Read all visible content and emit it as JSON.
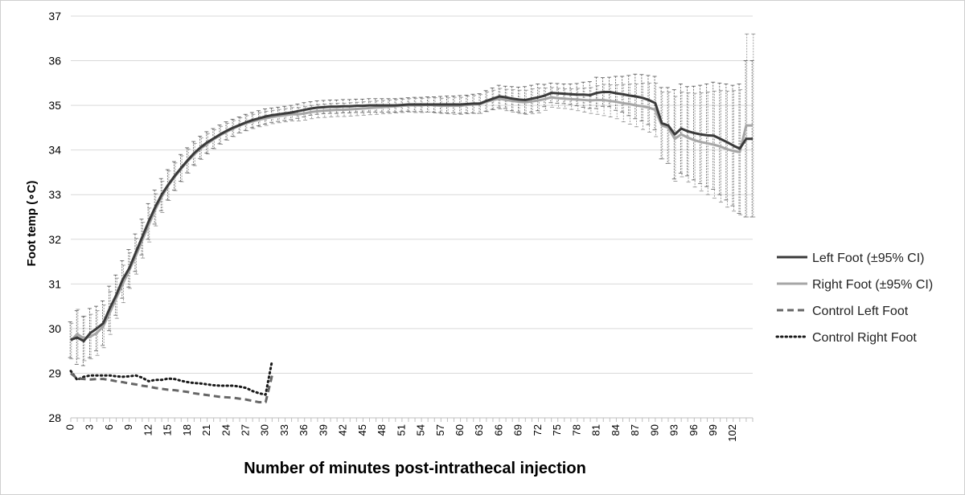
{
  "chart_data": {
    "type": "line",
    "title": "",
    "xlabel": "Number of minutes post-intrathecal injection",
    "ylabel": "Foot temp (∘C)",
    "ylim": [
      28,
      37
    ],
    "yticks": [
      28,
      29,
      30,
      31,
      32,
      33,
      34,
      35,
      36,
      37
    ],
    "xlim": [
      0,
      105
    ],
    "xtick_step": 3,
    "xticks_last": 102,
    "grid": true,
    "legend_position": "right",
    "error_bars": "95% CI",
    "series": [
      {
        "name": "Left Foot (±95% CI)",
        "style": "solid",
        "color": "#3a3a3a",
        "x": [
          0,
          1,
          2,
          3,
          4,
          5,
          6,
          7,
          8,
          9,
          10,
          11,
          12,
          13,
          14,
          15,
          16,
          17,
          18,
          19,
          20,
          21,
          22,
          23,
          24,
          25,
          26,
          27,
          28,
          29,
          30,
          31,
          32,
          33,
          34,
          35,
          36,
          37,
          38,
          39,
          40,
          41,
          42,
          43,
          44,
          45,
          46,
          47,
          48,
          49,
          50,
          51,
          52,
          53,
          54,
          55,
          56,
          57,
          58,
          59,
          60,
          61,
          62,
          63,
          64,
          65,
          66,
          67,
          68,
          69,
          70,
          71,
          72,
          73,
          74,
          75,
          76,
          77,
          78,
          79,
          80,
          81,
          82,
          83,
          84,
          85,
          86,
          87,
          88,
          89,
          90,
          91,
          92,
          93,
          94,
          95,
          96,
          97,
          98,
          99,
          100,
          101,
          102,
          103,
          104,
          105
        ],
        "values": [
          29.75,
          29.8,
          29.72,
          29.9,
          30.0,
          30.12,
          30.45,
          30.75,
          31.1,
          31.35,
          31.7,
          32.05,
          32.4,
          32.72,
          33.0,
          33.22,
          33.42,
          33.6,
          33.77,
          33.93,
          34.06,
          34.17,
          34.26,
          34.35,
          34.43,
          34.5,
          34.56,
          34.62,
          34.67,
          34.71,
          34.75,
          34.78,
          34.8,
          34.82,
          34.84,
          34.87,
          34.9,
          34.93,
          34.95,
          34.96,
          34.97,
          34.97,
          34.98,
          34.98,
          34.99,
          34.99,
          35.0,
          35.0,
          35.0,
          35.0,
          35.0,
          35.01,
          35.02,
          35.02,
          35.02,
          35.02,
          35.02,
          35.02,
          35.02,
          35.02,
          35.02,
          35.03,
          35.04,
          35.04,
          35.1,
          35.15,
          35.2,
          35.18,
          35.15,
          35.13,
          35.12,
          35.15,
          35.18,
          35.22,
          35.28,
          35.27,
          35.26,
          35.25,
          35.24,
          35.24,
          35.23,
          35.28,
          35.3,
          35.3,
          35.27,
          35.25,
          35.22,
          35.2,
          35.17,
          35.12,
          35.05,
          34.6,
          34.55,
          34.35,
          34.48,
          34.42,
          34.38,
          34.35,
          34.33,
          34.32,
          34.25,
          34.18,
          34.1,
          34.03,
          34.25,
          34.25
        ],
        "ci_half": [
          0.4,
          0.6,
          0.55,
          0.55,
          0.5,
          0.5,
          0.5,
          0.45,
          0.42,
          0.42,
          0.42,
          0.4,
          0.4,
          0.38,
          0.36,
          0.34,
          0.32,
          0.3,
          0.28,
          0.26,
          0.25,
          0.24,
          0.22,
          0.21,
          0.2,
          0.19,
          0.18,
          0.18,
          0.17,
          0.17,
          0.17,
          0.16,
          0.16,
          0.16,
          0.16,
          0.16,
          0.16,
          0.15,
          0.15,
          0.15,
          0.15,
          0.15,
          0.15,
          0.15,
          0.15,
          0.15,
          0.15,
          0.15,
          0.15,
          0.15,
          0.15,
          0.15,
          0.15,
          0.16,
          0.16,
          0.17,
          0.17,
          0.18,
          0.19,
          0.19,
          0.2,
          0.2,
          0.21,
          0.22,
          0.23,
          0.24,
          0.25,
          0.25,
          0.27,
          0.28,
          0.3,
          0.3,
          0.3,
          0.25,
          0.22,
          0.22,
          0.22,
          0.23,
          0.25,
          0.28,
          0.3,
          0.35,
          0.32,
          0.33,
          0.38,
          0.4,
          0.45,
          0.5,
          0.52,
          0.55,
          0.6,
          0.8,
          0.85,
          1.0,
          1.0,
          1.0,
          1.05,
          1.1,
          1.15,
          1.2,
          1.25,
          1.3,
          1.35,
          1.45,
          1.75,
          1.75
        ]
      },
      {
        "name": "Right Foot (±95% CI)",
        "style": "solid",
        "color": "#a6a6a6",
        "x": [
          0,
          1,
          2,
          3,
          4,
          5,
          6,
          7,
          8,
          9,
          10,
          11,
          12,
          13,
          14,
          15,
          16,
          17,
          18,
          19,
          20,
          21,
          22,
          23,
          24,
          25,
          26,
          27,
          28,
          29,
          30,
          31,
          32,
          33,
          34,
          35,
          36,
          37,
          38,
          39,
          40,
          41,
          42,
          43,
          44,
          45,
          46,
          47,
          48,
          49,
          50,
          51,
          52,
          53,
          54,
          55,
          56,
          57,
          58,
          59,
          60,
          61,
          62,
          63,
          64,
          65,
          66,
          67,
          68,
          69,
          70,
          71,
          72,
          73,
          74,
          75,
          76,
          77,
          78,
          79,
          80,
          81,
          82,
          83,
          84,
          85,
          86,
          87,
          88,
          89,
          90,
          91,
          92,
          93,
          94,
          95,
          96,
          97,
          98,
          99,
          100,
          101,
          102,
          103,
          104,
          105
        ],
        "values": [
          29.72,
          29.88,
          29.78,
          29.82,
          29.9,
          30.05,
          30.35,
          30.68,
          31.0,
          31.3,
          31.62,
          31.98,
          32.32,
          32.66,
          32.95,
          33.2,
          33.4,
          33.58,
          33.75,
          33.9,
          34.03,
          34.14,
          34.24,
          34.33,
          34.41,
          34.48,
          34.55,
          34.6,
          34.64,
          34.68,
          34.71,
          34.74,
          34.76,
          34.78,
          34.8,
          34.8,
          34.82,
          34.85,
          34.87,
          34.88,
          34.89,
          34.9,
          34.9,
          34.91,
          34.92,
          34.93,
          34.94,
          34.95,
          34.96,
          34.97,
          34.98,
          34.99,
          35.0,
          35.0,
          35.0,
          35.01,
          35.0,
          34.99,
          34.99,
          34.99,
          34.99,
          35.01,
          35.02,
          35.03,
          35.08,
          35.12,
          35.15,
          35.12,
          35.1,
          35.08,
          35.07,
          35.09,
          35.11,
          35.14,
          35.18,
          35.16,
          35.15,
          35.14,
          35.13,
          35.12,
          35.11,
          35.12,
          35.12,
          35.1,
          35.08,
          35.05,
          35.03,
          35.0,
          34.98,
          34.95,
          34.9,
          34.55,
          34.5,
          34.25,
          34.35,
          34.28,
          34.22,
          34.18,
          34.15,
          34.12,
          34.08,
          34.02,
          33.98,
          33.95,
          34.55,
          34.55
        ],
        "ci_half": [
          0.4,
          0.55,
          0.5,
          0.5,
          0.5,
          0.48,
          0.48,
          0.45,
          0.42,
          0.4,
          0.4,
          0.4,
          0.38,
          0.36,
          0.35,
          0.33,
          0.31,
          0.29,
          0.27,
          0.25,
          0.24,
          0.23,
          0.21,
          0.2,
          0.19,
          0.18,
          0.17,
          0.17,
          0.16,
          0.16,
          0.16,
          0.15,
          0.15,
          0.15,
          0.15,
          0.15,
          0.15,
          0.15,
          0.15,
          0.15,
          0.15,
          0.15,
          0.15,
          0.15,
          0.15,
          0.15,
          0.15,
          0.15,
          0.15,
          0.15,
          0.15,
          0.15,
          0.15,
          0.16,
          0.16,
          0.16,
          0.17,
          0.17,
          0.18,
          0.19,
          0.19,
          0.2,
          0.2,
          0.21,
          0.22,
          0.22,
          0.23,
          0.24,
          0.25,
          0.26,
          0.27,
          0.28,
          0.28,
          0.25,
          0.22,
          0.22,
          0.22,
          0.23,
          0.25,
          0.27,
          0.29,
          0.32,
          0.35,
          0.36,
          0.38,
          0.42,
          0.45,
          0.48,
          0.52,
          0.55,
          0.6,
          0.75,
          0.8,
          0.95,
          0.95,
          1.0,
          1.05,
          1.1,
          1.15,
          1.2,
          1.25,
          1.3,
          1.35,
          1.4,
          2.05,
          2.05
        ]
      },
      {
        "name": "Control Left Foot",
        "style": "dashed",
        "color": "#666666",
        "x": [
          0,
          1,
          2,
          3,
          4,
          5,
          6,
          7,
          8,
          9,
          10,
          11,
          12,
          13,
          14,
          15,
          16,
          17,
          18,
          19,
          20,
          21,
          22,
          23,
          24,
          25,
          26,
          27,
          28,
          29,
          30,
          31
        ],
        "values": [
          29.0,
          28.88,
          28.87,
          28.86,
          28.87,
          28.87,
          28.85,
          28.82,
          28.8,
          28.77,
          28.75,
          28.72,
          28.7,
          28.67,
          28.65,
          28.63,
          28.62,
          28.6,
          28.58,
          28.55,
          28.53,
          28.51,
          28.49,
          28.47,
          28.46,
          28.45,
          28.43,
          28.41,
          28.38,
          28.35,
          28.35,
          28.95
        ]
      },
      {
        "name": "Control Right Foot",
        "style": "dotted",
        "color": "#1a1a1a",
        "x": [
          0,
          1,
          2,
          3,
          4,
          5,
          6,
          7,
          8,
          9,
          10,
          11,
          12,
          13,
          14,
          15,
          16,
          17,
          18,
          19,
          20,
          21,
          22,
          23,
          24,
          25,
          26,
          27,
          28,
          29,
          30,
          31
        ],
        "values": [
          29.05,
          28.85,
          28.92,
          28.95,
          28.95,
          28.95,
          28.95,
          28.93,
          28.92,
          28.93,
          28.95,
          28.9,
          28.82,
          28.85,
          28.85,
          28.88,
          28.87,
          28.83,
          28.8,
          28.78,
          28.77,
          28.75,
          28.73,
          28.72,
          28.72,
          28.72,
          28.7,
          28.67,
          28.6,
          28.55,
          28.52,
          29.28
        ]
      }
    ]
  }
}
